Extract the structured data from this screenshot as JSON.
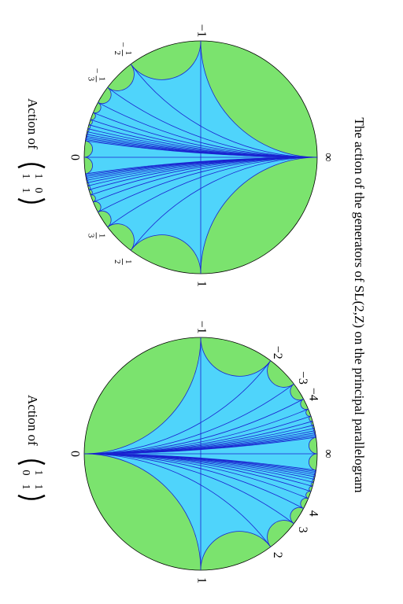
{
  "title": "The action of the generators of SL(2,Z) on the principal parallelogram",
  "panels": [
    {
      "caption": "Action of",
      "matrix": [
        [
          1,
          0
        ],
        [
          1,
          1
        ]
      ],
      "labels": [
        {
          "value": -1,
          "text": "−1"
        },
        {
          "value": -0.5,
          "sign": "−",
          "num": "1",
          "den": "2"
        },
        {
          "value": -0.3333,
          "sign": "−",
          "num": "1",
          "den": "3"
        },
        {
          "value": 0,
          "text": "0"
        },
        {
          "value": 0.3333,
          "num": "1",
          "den": "3"
        },
        {
          "value": 0.5,
          "num": "1",
          "den": "2"
        },
        {
          "value": 1,
          "text": "1"
        },
        {
          "text": "∞"
        }
      ]
    },
    {
      "caption": "Action of",
      "matrix": [
        [
          1,
          1
        ],
        [
          0,
          1
        ]
      ],
      "labels": [
        {
          "value": -1,
          "text": "−1"
        },
        {
          "value": -2,
          "text": "−2"
        },
        {
          "value": -3,
          "text": "−3"
        },
        {
          "value": -4,
          "text": "−4"
        },
        {
          "text": "∞"
        },
        {
          "value": 4,
          "text": "4"
        },
        {
          "value": 3,
          "text": "3"
        },
        {
          "value": 2,
          "text": "2"
        },
        {
          "value": 1,
          "text": "1"
        },
        {
          "value": 0,
          "text": "0"
        }
      ]
    }
  ]
}
